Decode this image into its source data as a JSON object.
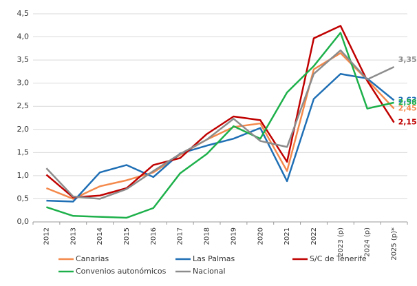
{
  "chart_data": {
    "type": "line",
    "categories": [
      "2012",
      "2013",
      "2014",
      "2015",
      "2016",
      "2017",
      "2018",
      "2019",
      "2020",
      "2021",
      "2022",
      "2023 (p)",
      "2024 (p)",
      "2025 (p)*"
    ],
    "series": [
      {
        "name": "Canarias",
        "color": "#f4894b",
        "values": [
          0.73,
          0.5,
          0.77,
          0.9,
          1.07,
          1.45,
          1.78,
          2.05,
          2.13,
          1.1,
          3.3,
          3.65,
          3.07,
          2.45
        ],
        "value_labels": [
          null,
          null,
          null,
          null,
          null,
          null,
          null,
          null,
          null,
          null,
          null,
          null,
          null,
          "2,45"
        ]
      },
      {
        "name": "Las Palmas",
        "color": "#1f6fb5",
        "values": [
          0.46,
          0.44,
          1.07,
          1.23,
          0.97,
          1.48,
          1.65,
          1.8,
          2.03,
          0.88,
          2.66,
          3.2,
          3.1,
          2.63
        ],
        "value_labels": [
          null,
          null,
          null,
          null,
          null,
          null,
          null,
          null,
          null,
          null,
          null,
          null,
          null,
          "2,63"
        ]
      },
      {
        "name": "S/C de Tenerife",
        "color": "#c00000",
        "values": [
          1.02,
          0.53,
          0.57,
          0.73,
          1.23,
          1.38,
          1.9,
          2.28,
          2.2,
          1.3,
          3.97,
          4.24,
          3.05,
          2.15
        ],
        "value_labels": [
          null,
          null,
          null,
          null,
          null,
          null,
          null,
          null,
          null,
          null,
          null,
          null,
          null,
          "2,15"
        ]
      },
      {
        "name": "Convenios autonómicos",
        "color": "#1db04a",
        "values": [
          0.32,
          0.13,
          0.11,
          0.09,
          0.3,
          1.05,
          1.47,
          2.07,
          1.8,
          2.8,
          3.37,
          4.09,
          2.45,
          2.58
        ],
        "value_labels": [
          null,
          null,
          null,
          null,
          null,
          null,
          null,
          null,
          null,
          null,
          null,
          null,
          null,
          "2,58"
        ]
      },
      {
        "name": "Nacional",
        "color": "#8c8c8c",
        "values": [
          1.16,
          0.55,
          0.5,
          0.71,
          1.1,
          1.47,
          1.78,
          2.23,
          1.75,
          1.62,
          3.2,
          3.71,
          3.08,
          3.35
        ],
        "value_labels": [
          null,
          null,
          null,
          null,
          null,
          null,
          null,
          null,
          null,
          null,
          null,
          null,
          null,
          "3,35"
        ]
      }
    ],
    "ylim": [
      0,
      4.5
    ],
    "yticks": [
      {
        "value": 0,
        "label": "0,0"
      },
      {
        "value": 0.5,
        "label": "0,5"
      },
      {
        "value": 1,
        "label": "1,0"
      },
      {
        "value": 1.5,
        "label": "1,5"
      },
      {
        "value": 2,
        "label": "2,0"
      },
      {
        "value": 2.5,
        "label": "2,5"
      },
      {
        "value": 3,
        "label": "3,0"
      },
      {
        "value": 3.5,
        "label": "3,5"
      },
      {
        "value": 4,
        "label": "4,0"
      },
      {
        "value": 4.5,
        "label": "4,5"
      }
    ],
    "grid": true,
    "legend": "bottom"
  }
}
